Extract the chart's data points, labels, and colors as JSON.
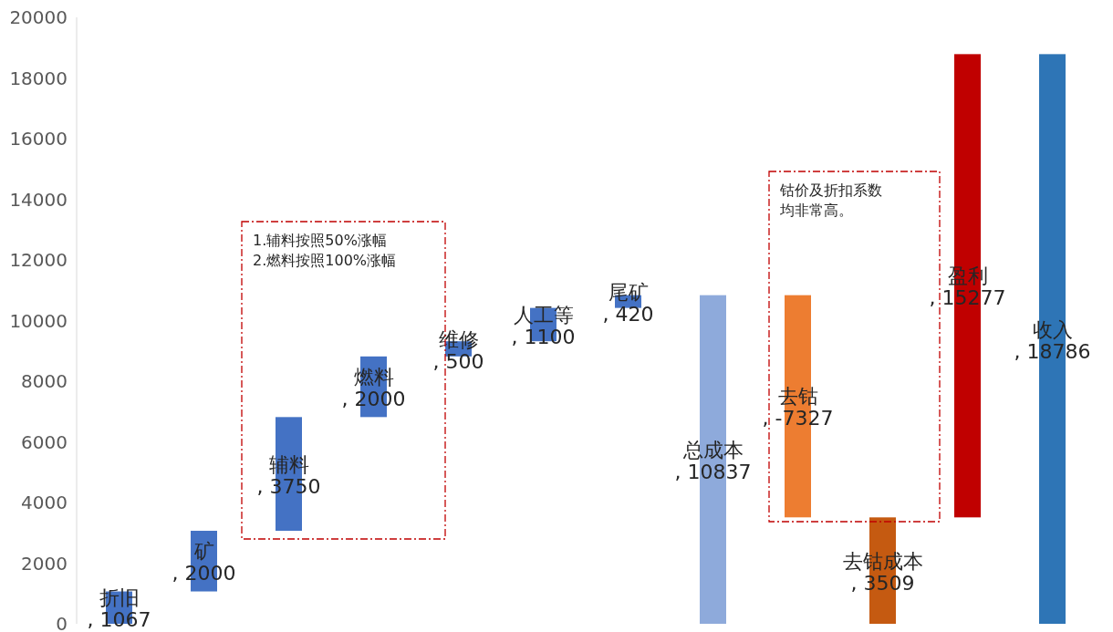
{
  "chart_data": {
    "type": "bar",
    "categories": [
      "折旧",
      "矿",
      "辅料",
      "燃料",
      "维修",
      "人工等",
      "尾矿",
      "总成本",
      "去钴",
      "去钴成本",
      "盈利",
      "收入"
    ],
    "values": [
      1067,
      2000,
      3750,
      2000,
      500,
      1100,
      420,
      10837,
      -7327,
      3509,
      15277,
      18786
    ],
    "base": [
      0,
      1067,
      3067,
      6817,
      8817,
      9317,
      10417,
      0,
      10837,
      0,
      3509,
      0
    ],
    "colors": [
      "#4472c4",
      "#4472c4",
      "#4472c4",
      "#4472c4",
      "#4472c4",
      "#4472c4",
      "#4472c4",
      "#8eaadb",
      "#ed7d31",
      "#c55a11",
      "#c00000",
      "#2e75b6"
    ],
    "ylim": [
      0,
      20000
    ],
    "yticks": [
      0,
      2000,
      4000,
      6000,
      8000,
      10000,
      12000,
      14000,
      16000,
      18000,
      20000
    ],
    "value_labels": [
      ", 1067",
      ", 2000",
      ", 3750",
      ", 2000",
      ", 500",
      ", 1100",
      ", 420",
      ", 10837",
      ", -7327",
      ", 3509",
      ", 15277",
      ", 18786"
    ],
    "annotations": [
      "1.辅料按照50%涨幅",
      "2.燃料按照100%涨幅",
      "钴价及折扣系数均非常高。"
    ]
  }
}
